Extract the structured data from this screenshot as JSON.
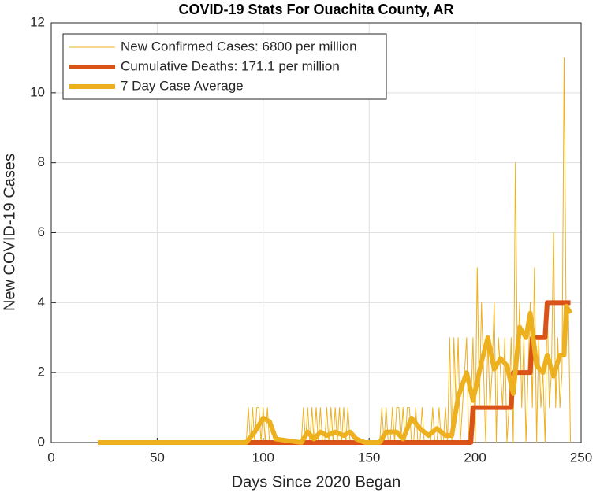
{
  "chart_data": {
    "type": "line",
    "title": "COVID-19 Stats For Ouachita County, AR",
    "xlabel": "Days Since 2020 Began",
    "ylabel": "New COVID-19 Cases",
    "xlim": [
      0,
      250
    ],
    "xticks": [
      0,
      50,
      100,
      150,
      200,
      250
    ],
    "ylim": [
      0,
      12
    ],
    "yticks": [
      0,
      2,
      4,
      6,
      8,
      10,
      12
    ],
    "grid": true,
    "legend": "upper left",
    "series": [
      {
        "name": "New Confirmed Cases: 6800 per million",
        "color": "#EDB120",
        "width": 1,
        "x": [
          22,
          92,
          93,
          94,
          95,
          96,
          97,
          98,
          99,
          100,
          101,
          102,
          103,
          104,
          105,
          106,
          107,
          108,
          109,
          110,
          111,
          112,
          113,
          114,
          115,
          116,
          117,
          118,
          119,
          120,
          121,
          122,
          123,
          124,
          125,
          126,
          127,
          128,
          129,
          130,
          131,
          132,
          133,
          134,
          135,
          136,
          137,
          138,
          139,
          140,
          141,
          142,
          143,
          144,
          145,
          146,
          147,
          148,
          149,
          150,
          151,
          152,
          153,
          154,
          155,
          156,
          157,
          158,
          159,
          160,
          161,
          162,
          163,
          164,
          165,
          166,
          167,
          168,
          169,
          170,
          171,
          172,
          173,
          174,
          175,
          176,
          177,
          178,
          179,
          180,
          181,
          182,
          183,
          184,
          185,
          186,
          187,
          188,
          189,
          190,
          191,
          192,
          193,
          194,
          195,
          196,
          197,
          198,
          199,
          200,
          201,
          202,
          203,
          204,
          205,
          206,
          207,
          208,
          209,
          210,
          211,
          212,
          213,
          214,
          215,
          216,
          217,
          218,
          219,
          220,
          221,
          222,
          223,
          224,
          225,
          226,
          227,
          228,
          229,
          230,
          231,
          232,
          233,
          234,
          235,
          236,
          237,
          238,
          239,
          240,
          241,
          242,
          243,
          244,
          245
        ],
        "values": [
          0,
          0,
          1,
          0,
          1,
          0,
          1,
          1,
          0,
          1,
          0,
          1,
          0,
          0,
          0,
          0,
          0,
          0,
          0,
          0,
          0,
          0,
          0,
          0,
          0,
          0,
          0,
          0,
          1,
          0,
          1,
          0,
          1,
          0,
          1,
          0,
          1,
          0,
          0,
          1,
          0,
          1,
          0,
          1,
          0,
          1,
          0,
          1,
          0,
          1,
          0,
          0,
          0,
          0,
          0,
          0,
          0,
          0,
          0,
          0,
          0,
          0,
          0,
          0,
          0,
          1,
          0,
          1,
          0,
          0,
          1,
          0,
          1,
          1,
          0,
          1,
          0,
          1,
          1,
          0,
          0,
          1,
          0,
          0,
          1,
          0,
          0,
          0,
          0,
          1,
          0,
          0,
          1,
          0,
          0,
          1,
          0,
          3,
          0,
          3,
          1,
          3,
          0,
          1,
          2,
          3,
          0,
          1,
          3,
          0,
          5,
          1,
          4,
          2,
          0,
          3,
          1,
          2,
          4,
          0,
          3,
          2,
          1,
          3,
          0,
          1,
          3,
          0,
          8,
          2,
          4,
          1,
          3,
          0,
          2,
          4,
          1,
          5,
          0,
          3,
          1,
          2,
          0,
          4,
          1,
          2,
          6,
          1,
          3,
          1,
          2,
          11,
          3,
          4,
          0
        ]
      },
      {
        "name": "Cumulative Deaths: 171.1 per million",
        "color": "#D95319",
        "width": 6,
        "x": [
          22,
          198,
          199,
          217,
          218,
          226,
          227,
          233,
          234,
          245
        ],
        "values": [
          0,
          0,
          1,
          1,
          2,
          2,
          3,
          3,
          4,
          4
        ]
      },
      {
        "name": "7 Day Case Average",
        "color": "#EDB120",
        "width": 6,
        "x": [
          22,
          92,
          96,
          100,
          103,
          106,
          118,
          121,
          124,
          127,
          130,
          134,
          138,
          141,
          144,
          148,
          155,
          158,
          163,
          166,
          170,
          174,
          178,
          182,
          186,
          189,
          192,
          196,
          199,
          203,
          206,
          209,
          212,
          215,
          218,
          221,
          224,
          226,
          229,
          232,
          234,
          237,
          240,
          242,
          243,
          245
        ],
        "values": [
          0,
          0,
          0.3,
          0.7,
          0.6,
          0.1,
          0,
          0.3,
          0.1,
          0.3,
          0.2,
          0.3,
          0.2,
          0.3,
          0.1,
          0,
          0,
          0.3,
          0.3,
          0.1,
          0.7,
          0.4,
          0.2,
          0.4,
          0.2,
          0.2,
          1.3,
          2,
          1.2,
          2.3,
          3,
          2.1,
          2.4,
          2.2,
          1.4,
          3.3,
          3,
          3.7,
          2.2,
          2,
          2.5,
          1.9,
          2.5,
          2.5,
          3.9,
          3.7
        ]
      }
    ]
  }
}
